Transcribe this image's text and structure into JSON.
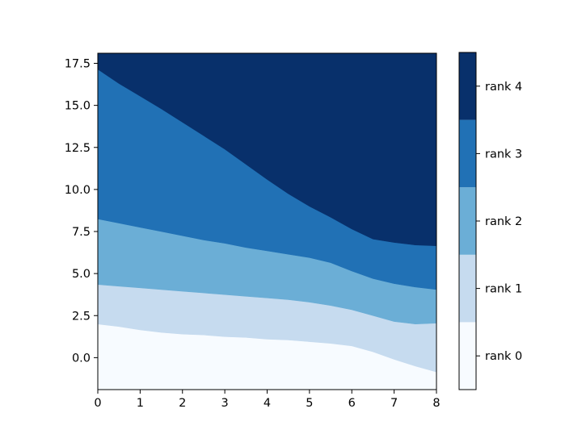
{
  "chart_data": {
    "type": "area",
    "title": "",
    "xlabel": "",
    "ylabel": "",
    "xlim": [
      0,
      8
    ],
    "ylim": [
      -1.9,
      18.1
    ],
    "x_ticks": [
      0,
      1,
      2,
      3,
      4,
      5,
      6,
      7,
      8
    ],
    "x_tick_labels": [
      "0",
      "1",
      "2",
      "3",
      "4",
      "5",
      "6",
      "7",
      "8"
    ],
    "y_ticks": [
      0.0,
      2.5,
      5.0,
      7.5,
      10.0,
      12.5,
      15.0,
      17.5
    ],
    "y_tick_labels": [
      "0.0",
      "2.5",
      "5.0",
      "7.5",
      "10.0",
      "12.5",
      "15.0",
      "17.5"
    ],
    "grid": false,
    "x": [
      0,
      0.5,
      1,
      1.5,
      2,
      2.5,
      3,
      3.5,
      4,
      4.5,
      5,
      5.5,
      6,
      6.5,
      7,
      7.5,
      8
    ],
    "boundaries": [
      [
        2.0,
        1.85,
        1.65,
        1.5,
        1.4,
        1.35,
        1.25,
        1.2,
        1.1,
        1.05,
        0.95,
        0.85,
        0.7,
        0.35,
        -0.1,
        -0.5,
        -0.85
      ],
      [
        4.35,
        4.25,
        4.15,
        4.05,
        3.95,
        3.85,
        3.75,
        3.65,
        3.55,
        3.45,
        3.3,
        3.1,
        2.85,
        2.5,
        2.15,
        2.0,
        2.05
      ],
      [
        8.25,
        8.0,
        7.75,
        7.5,
        7.25,
        7.0,
        6.8,
        6.55,
        6.35,
        6.15,
        5.95,
        5.65,
        5.15,
        4.7,
        4.4,
        4.2,
        4.05
      ],
      [
        17.15,
        16.3,
        15.55,
        14.8,
        14.0,
        13.2,
        12.4,
        11.5,
        10.6,
        9.75,
        9.0,
        8.35,
        7.65,
        7.05,
        6.85,
        6.7,
        6.65
      ]
    ],
    "series": [
      {
        "name": "rank 0",
        "color": "#f7fbff"
      },
      {
        "name": "rank 1",
        "color": "#c6dbef"
      },
      {
        "name": "rank 2",
        "color": "#6baed6"
      },
      {
        "name": "rank 3",
        "color": "#2171b5"
      },
      {
        "name": "rank 4",
        "color": "#08306b"
      }
    ],
    "colorbar": {
      "labels": [
        "rank 0",
        "rank 1",
        "rank 2",
        "rank 3",
        "rank 4"
      ],
      "placement": "right"
    }
  }
}
